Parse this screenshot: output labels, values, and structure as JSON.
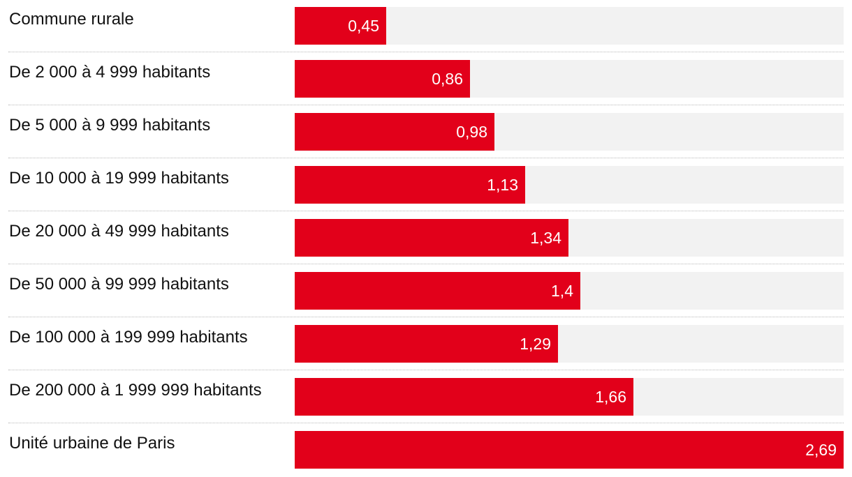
{
  "chart_data": {
    "type": "bar",
    "orientation": "horizontal",
    "title": "",
    "xlabel": "",
    "ylabel": "",
    "categories": [
      "Commune rurale",
      "De 2 000 à 4 999 habitants",
      "De 5 000 à 9 999 habitants",
      "De 10 000 à 19 999 habitants",
      "De 20 000 à 49 999 habitants",
      "De 50 000 à 99 999 habitants",
      "De 100 000 à 199 999 habitants",
      "De 200 000 à 1 999 999 habitants",
      "Unité urbaine de Paris"
    ],
    "values": [
      0.45,
      0.86,
      0.98,
      1.13,
      1.34,
      1.4,
      1.29,
      1.66,
      2.69
    ],
    "value_labels": [
      "0,45",
      "0,86",
      "0,98",
      "1,13",
      "1,34",
      "1,4",
      "1,29",
      "1,66",
      "2,69"
    ],
    "xlim": [
      0,
      2.69
    ],
    "grid": false,
    "legend": "none",
    "colors": {
      "bar": "#e2001a",
      "track": "#f2f2f2",
      "label_text": "#111111",
      "value_text": "#ffffff",
      "divider": "#b8b8b8"
    }
  }
}
